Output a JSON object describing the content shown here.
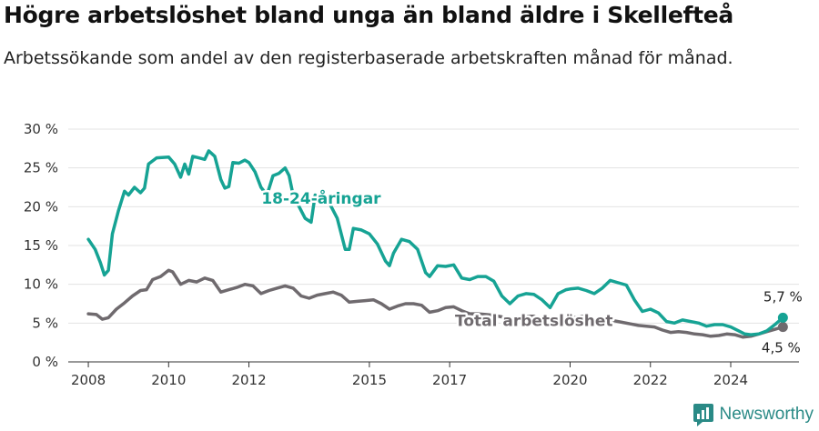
{
  "title": "Högre arbetslöshet bland unga än bland äldre i Skellefteå",
  "subtitle": "Arbetssökande som andel av den registerbaserade arbetskraften månad för månad.",
  "brand": {
    "name": "Newsworthy",
    "icon": "newsworthy-logo-icon",
    "color": "#2a8a86"
  },
  "chart_data": {
    "type": "line",
    "title": "Högre arbetslöshet bland unga än bland äldre i Skellefteå",
    "subtitle": "Arbetssökande som andel av den registerbaserade arbetskraften månad för månad.",
    "ylim": [
      0,
      30
    ],
    "yticks": [
      0,
      5,
      10,
      15,
      20,
      25,
      30
    ],
    "ytick_labels": [
      "0 %",
      "5 %",
      "10 %",
      "15 %",
      "20 %",
      "25 %",
      "30 %"
    ],
    "xlim": [
      2007.5,
      2025.7
    ],
    "xticks": [
      2008,
      2010,
      2012,
      2015,
      2017,
      2020,
      2022,
      2024
    ],
    "xtick_labels": [
      "2008",
      "2010",
      "2012",
      "2015",
      "2017",
      "2020",
      "2022",
      "2024"
    ],
    "grid": true,
    "series": [
      {
        "name": "18-24-åringar",
        "color": "#16a394",
        "end_label": "5,7 %",
        "points": [
          [
            2008.0,
            15.8
          ],
          [
            2008.17,
            14.5
          ],
          [
            2008.3,
            12.8
          ],
          [
            2008.4,
            11.2
          ],
          [
            2008.5,
            11.8
          ],
          [
            2008.6,
            16.5
          ],
          [
            2008.75,
            19.5
          ],
          [
            2008.9,
            22.0
          ],
          [
            2009.0,
            21.5
          ],
          [
            2009.15,
            22.5
          ],
          [
            2009.3,
            21.8
          ],
          [
            2009.4,
            22.4
          ],
          [
            2009.5,
            25.5
          ],
          [
            2009.7,
            26.3
          ],
          [
            2010.0,
            26.4
          ],
          [
            2010.15,
            25.5
          ],
          [
            2010.3,
            23.8
          ],
          [
            2010.4,
            25.5
          ],
          [
            2010.5,
            24.2
          ],
          [
            2010.6,
            26.5
          ],
          [
            2010.75,
            26.3
          ],
          [
            2010.9,
            26.1
          ],
          [
            2011.0,
            27.2
          ],
          [
            2011.15,
            26.5
          ],
          [
            2011.3,
            23.5
          ],
          [
            2011.4,
            22.4
          ],
          [
            2011.5,
            22.6
          ],
          [
            2011.6,
            25.7
          ],
          [
            2011.75,
            25.6
          ],
          [
            2011.9,
            26.0
          ],
          [
            2012.0,
            25.7
          ],
          [
            2012.15,
            24.5
          ],
          [
            2012.3,
            22.5
          ],
          [
            2012.45,
            21.5
          ],
          [
            2012.6,
            24.0
          ],
          [
            2012.75,
            24.3
          ],
          [
            2012.9,
            25.0
          ],
          [
            2013.0,
            24.0
          ],
          [
            2013.1,
            21.5
          ],
          [
            2013.25,
            20.0
          ],
          [
            2013.4,
            18.5
          ],
          [
            2013.55,
            18.0
          ],
          [
            2013.65,
            21.5
          ],
          [
            2013.8,
            21.0
          ],
          [
            2014.0,
            20.5
          ],
          [
            2014.2,
            18.5
          ],
          [
            2014.4,
            14.5
          ],
          [
            2014.5,
            14.5
          ],
          [
            2014.6,
            17.2
          ],
          [
            2014.8,
            17.0
          ],
          [
            2015.0,
            16.5
          ],
          [
            2015.2,
            15.2
          ],
          [
            2015.4,
            13.0
          ],
          [
            2015.5,
            12.4
          ],
          [
            2015.6,
            14.0
          ],
          [
            2015.8,
            15.8
          ],
          [
            2016.0,
            15.5
          ],
          [
            2016.2,
            14.5
          ],
          [
            2016.4,
            11.5
          ],
          [
            2016.5,
            11.0
          ],
          [
            2016.7,
            12.4
          ],
          [
            2016.9,
            12.3
          ],
          [
            2017.1,
            12.5
          ],
          [
            2017.3,
            10.8
          ],
          [
            2017.5,
            10.6
          ],
          [
            2017.7,
            11.0
          ],
          [
            2017.9,
            11.0
          ],
          [
            2018.1,
            10.4
          ],
          [
            2018.3,
            8.5
          ],
          [
            2018.5,
            7.5
          ],
          [
            2018.7,
            8.5
          ],
          [
            2018.9,
            8.8
          ],
          [
            2019.1,
            8.7
          ],
          [
            2019.3,
            8.0
          ],
          [
            2019.5,
            7.0
          ],
          [
            2019.7,
            8.8
          ],
          [
            2019.9,
            9.3
          ],
          [
            2020.0,
            9.4
          ],
          [
            2020.2,
            9.5
          ],
          [
            2020.4,
            9.2
          ],
          [
            2020.6,
            8.8
          ],
          [
            2020.8,
            9.5
          ],
          [
            2021.0,
            10.5
          ],
          [
            2021.2,
            10.2
          ],
          [
            2021.4,
            9.9
          ],
          [
            2021.6,
            8.0
          ],
          [
            2021.8,
            6.5
          ],
          [
            2022.0,
            6.8
          ],
          [
            2022.2,
            6.3
          ],
          [
            2022.4,
            5.2
          ],
          [
            2022.6,
            5.0
          ],
          [
            2022.8,
            5.4
          ],
          [
            2023.0,
            5.2
          ],
          [
            2023.2,
            5.0
          ],
          [
            2023.4,
            4.6
          ],
          [
            2023.6,
            4.8
          ],
          [
            2023.8,
            4.8
          ],
          [
            2024.0,
            4.5
          ],
          [
            2024.2,
            4.0
          ],
          [
            2024.35,
            3.6
          ],
          [
            2024.5,
            3.5
          ],
          [
            2024.7,
            3.6
          ],
          [
            2024.9,
            4.0
          ],
          [
            2025.1,
            4.8
          ],
          [
            2025.3,
            5.7
          ]
        ]
      },
      {
        "name": "Total arbetslöshet",
        "color": "#6f6a6e",
        "end_label": "4,5 %",
        "points": [
          [
            2008.0,
            6.2
          ],
          [
            2008.2,
            6.1
          ],
          [
            2008.35,
            5.5
          ],
          [
            2008.5,
            5.7
          ],
          [
            2008.7,
            6.8
          ],
          [
            2008.9,
            7.6
          ],
          [
            2009.1,
            8.5
          ],
          [
            2009.3,
            9.2
          ],
          [
            2009.45,
            9.3
          ],
          [
            2009.6,
            10.6
          ],
          [
            2009.8,
            11.0
          ],
          [
            2010.0,
            11.8
          ],
          [
            2010.1,
            11.6
          ],
          [
            2010.3,
            10.0
          ],
          [
            2010.5,
            10.5
          ],
          [
            2010.7,
            10.3
          ],
          [
            2010.9,
            10.8
          ],
          [
            2011.1,
            10.5
          ],
          [
            2011.3,
            9.0
          ],
          [
            2011.5,
            9.3
          ],
          [
            2011.7,
            9.6
          ],
          [
            2011.9,
            10.0
          ],
          [
            2012.1,
            9.8
          ],
          [
            2012.3,
            8.8
          ],
          [
            2012.5,
            9.2
          ],
          [
            2012.7,
            9.5
          ],
          [
            2012.9,
            9.8
          ],
          [
            2013.1,
            9.5
          ],
          [
            2013.3,
            8.5
          ],
          [
            2013.5,
            8.2
          ],
          [
            2013.7,
            8.6
          ],
          [
            2013.9,
            8.8
          ],
          [
            2014.1,
            9.0
          ],
          [
            2014.3,
            8.6
          ],
          [
            2014.5,
            7.7
          ],
          [
            2014.7,
            7.8
          ],
          [
            2014.9,
            7.9
          ],
          [
            2015.1,
            8.0
          ],
          [
            2015.3,
            7.5
          ],
          [
            2015.5,
            6.8
          ],
          [
            2015.7,
            7.2
          ],
          [
            2015.9,
            7.5
          ],
          [
            2016.1,
            7.5
          ],
          [
            2016.3,
            7.3
          ],
          [
            2016.5,
            6.4
          ],
          [
            2016.7,
            6.6
          ],
          [
            2016.9,
            7.0
          ],
          [
            2017.1,
            7.1
          ],
          [
            2017.3,
            6.6
          ],
          [
            2017.5,
            6.2
          ],
          [
            2017.7,
            6.2
          ],
          [
            2017.9,
            6.1
          ],
          [
            2018.1,
            6.0
          ],
          [
            2018.3,
            5.8
          ],
          [
            2018.5,
            5.4
          ],
          [
            2018.7,
            5.6
          ],
          [
            2018.9,
            5.9
          ],
          [
            2019.1,
            5.9
          ],
          [
            2019.3,
            5.5
          ],
          [
            2019.5,
            5.2
          ],
          [
            2019.7,
            5.5
          ],
          [
            2019.9,
            5.6
          ],
          [
            2020.1,
            5.7
          ],
          [
            2020.3,
            5.9
          ],
          [
            2020.5,
            5.7
          ],
          [
            2020.7,
            5.4
          ],
          [
            2020.9,
            5.4
          ],
          [
            2021.1,
            5.3
          ],
          [
            2021.3,
            5.1
          ],
          [
            2021.5,
            4.9
          ],
          [
            2021.7,
            4.7
          ],
          [
            2021.9,
            4.6
          ],
          [
            2022.1,
            4.5
          ],
          [
            2022.3,
            4.1
          ],
          [
            2022.5,
            3.8
          ],
          [
            2022.7,
            3.9
          ],
          [
            2022.9,
            3.8
          ],
          [
            2023.1,
            3.6
          ],
          [
            2023.3,
            3.5
          ],
          [
            2023.5,
            3.3
          ],
          [
            2023.7,
            3.4
          ],
          [
            2023.9,
            3.6
          ],
          [
            2024.1,
            3.5
          ],
          [
            2024.3,
            3.2
          ],
          [
            2024.5,
            3.3
          ],
          [
            2024.7,
            3.6
          ],
          [
            2024.9,
            3.9
          ],
          [
            2025.1,
            4.2
          ],
          [
            2025.3,
            4.5
          ]
        ]
      }
    ]
  }
}
